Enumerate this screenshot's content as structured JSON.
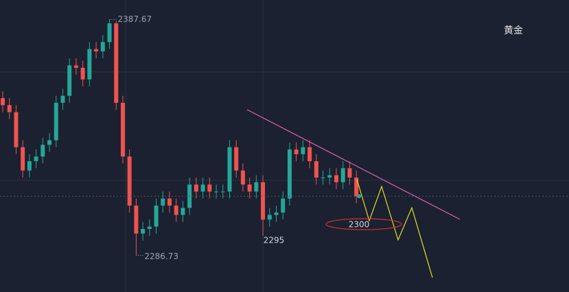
{
  "chart_data": {
    "type": "candlestick",
    "title": "黄金",
    "open": [
      2354,
      2351,
      2348,
      2333,
      2323,
      2327,
      2329,
      2334,
      2336,
      2352,
      2355,
      2368,
      2367,
      2362,
      2375,
      2374,
      2378,
      2386,
      2352,
      2329,
      2308,
      2296,
      2298,
      2299,
      2308,
      2311,
      2308,
      2304,
      2307,
      2317,
      2314,
      2317,
      2314,
      2314,
      2314,
      2333,
      2323,
      2317,
      2314,
      2318,
      2302,
      2304,
      2305,
      2311,
      2332,
      2330,
      2333,
      2327,
      2320,
      2320,
      2321,
      2318,
      2324,
      2320
    ],
    "high": [
      2357,
      2354,
      2351,
      2336,
      2330,
      2332,
      2337,
      2339,
      2355,
      2358,
      2371,
      2371,
      2370,
      2378,
      2378,
      2381,
      2387.67,
      2387,
      2355,
      2332,
      2311,
      2301,
      2302,
      2311,
      2314,
      2314,
      2311,
      2310,
      2320,
      2320,
      2320,
      2320,
      2317,
      2317,
      2336,
      2336,
      2326,
      2320,
      2321,
      2321,
      2307,
      2308,
      2314,
      2335,
      2335,
      2336,
      2336,
      2330,
      2323,
      2324,
      2324,
      2327,
      2327,
      2323
    ],
    "low": [
      2348,
      2345,
      2330,
      2320,
      2320,
      2324,
      2326,
      2331,
      2333,
      2349,
      2352,
      2364,
      2359,
      2359,
      2371,
      2371,
      2375,
      2349,
      2326,
      2305,
      2286.73,
      2293,
      2295,
      2296,
      2305,
      2305,
      2301,
      2301,
      2304,
      2311,
      2311,
      2311,
      2311,
      2311,
      2311,
      2320,
      2314,
      2311,
      2311,
      2295,
      2299,
      2301,
      2302,
      2308,
      2327,
      2327,
      2324,
      2317,
      2317,
      2317,
      2315,
      2315,
      2317,
      2309
    ],
    "close": [
      2351,
      2348,
      2333,
      2323,
      2327,
      2329,
      2334,
      2336,
      2352,
      2355,
      2368,
      2367,
      2362,
      2375,
      2374,
      2378,
      2386,
      2352,
      2329,
      2308,
      2296,
      2298,
      2299,
      2308,
      2311,
      2308,
      2304,
      2307,
      2317,
      2314,
      2317,
      2314,
      2314,
      2314,
      2333,
      2323,
      2317,
      2314,
      2318,
      2302,
      2304,
      2305,
      2311,
      2332,
      2330,
      2333,
      2327,
      2320,
      2320,
      2321,
      2318,
      2324,
      2320,
      2312
    ],
    "up_color": "#26a69a",
    "down_color": "#ef5350",
    "ylim": [
      2271,
      2396
    ],
    "high_label": "2387.67",
    "low_label": "2286.73",
    "annotations": [
      "2295",
      "2300"
    ]
  }
}
